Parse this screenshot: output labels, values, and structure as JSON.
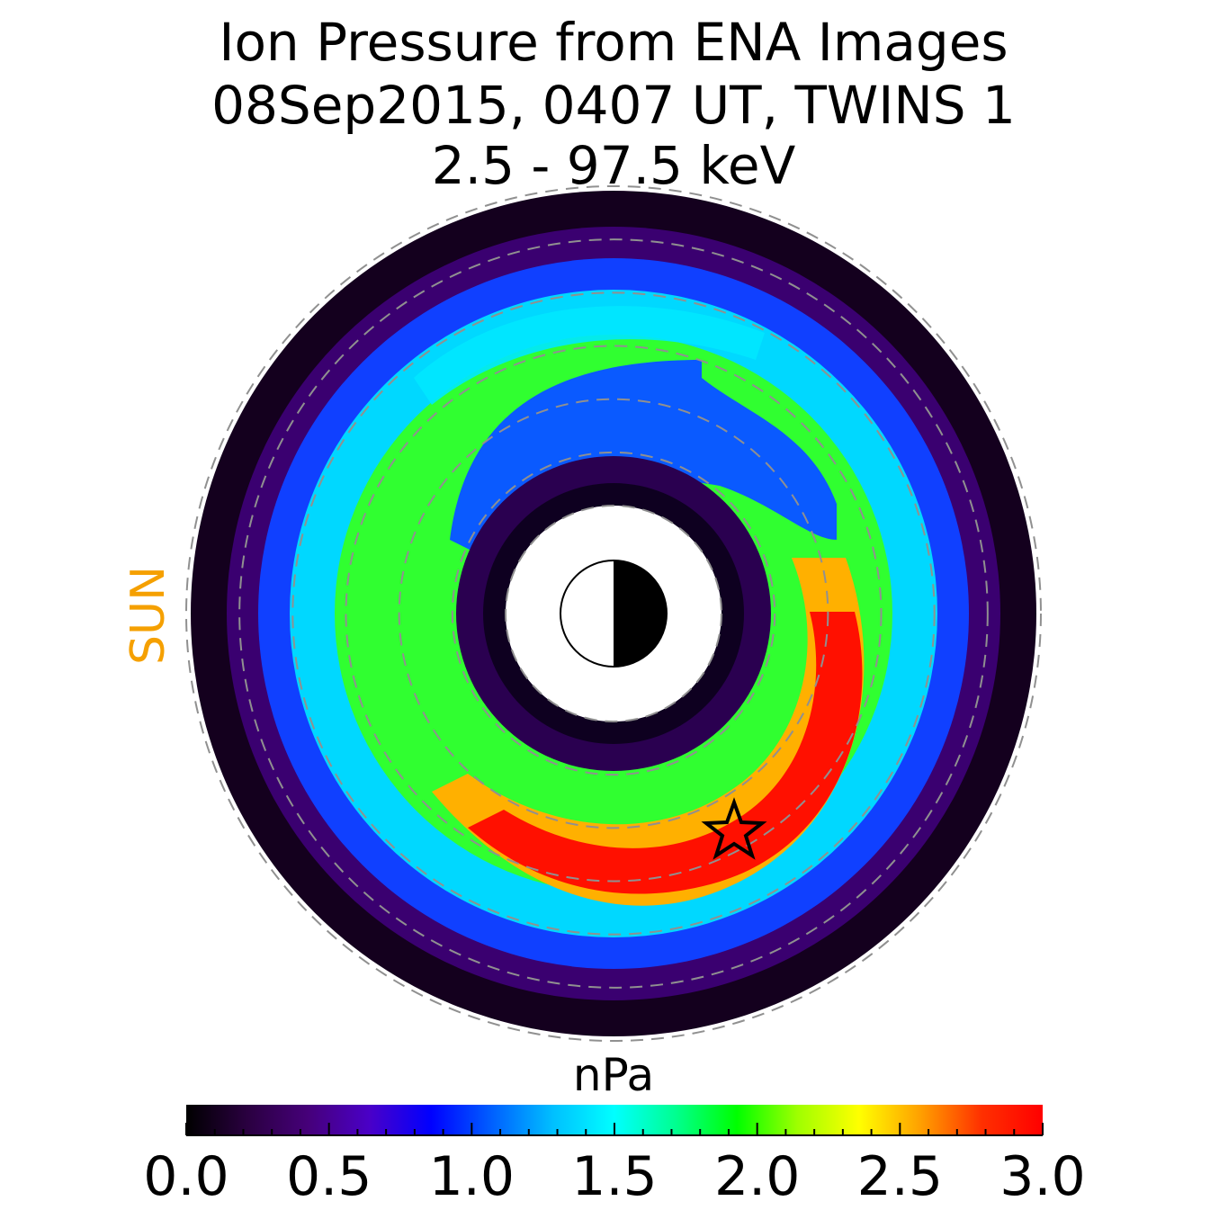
{
  "chart_data": {
    "type": "heatmap",
    "title": [
      "Ion Pressure from  ENA Images",
      "08Sep2015, 0407 UT,  TWINS 1",
      "2.5 - 97.5 keV"
    ],
    "sun_label": "SUN",
    "colorbar": {
      "label": "nPa",
      "range": [
        0.0,
        3.0
      ],
      "tick_values": [
        0.0,
        0.5,
        1.0,
        1.5,
        2.0,
        2.5,
        3.0
      ],
      "tick_labels": [
        "0.0",
        "0.5",
        "1.0",
        "1.5",
        "2.0",
        "2.5",
        "3.0"
      ],
      "colormap": [
        "#000000",
        "#2a0040",
        "#46007a",
        "#4a00c8",
        "#0000ff",
        "#0060ff",
        "#00c0ff",
        "#00ffff",
        "#00ff90",
        "#00ff00",
        "#a0ff00",
        "#ffff00",
        "#ffa000",
        "#ff3000",
        "#ff0000"
      ]
    },
    "map": {
      "radial_extent_RE": [
        2,
        8
      ],
      "dashed_circles_RE": [
        2,
        3,
        4,
        5,
        6,
        7,
        8
      ],
      "pressure_peak_nPa": 3.0,
      "star_label_position": "dusk-midnight sector near peak"
    },
    "colors": {
      "sun": "#f5a000",
      "dashed": "#909090",
      "earth_dark": "#000000",
      "earth_light": "#ffffff"
    }
  }
}
